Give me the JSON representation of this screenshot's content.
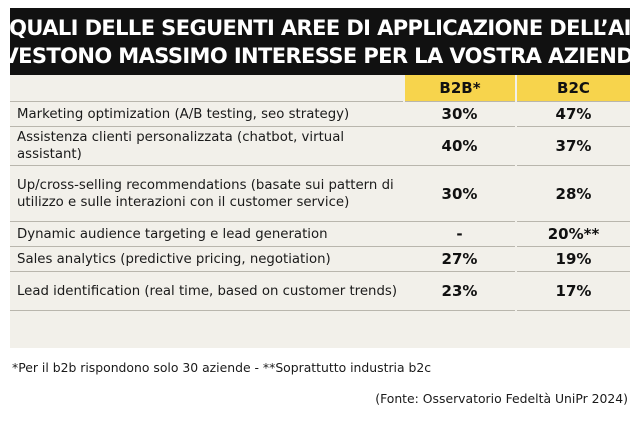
{
  "header": {
    "title_line1": "QUALI DELLE SEGUENTI AREE DI APPLICAZIONE DELL’AI",
    "title_line2": "RIVESTONO MASSIMO INTERESSE PER LA VOSTRA AZIENDA?"
  },
  "colors": {
    "title_background": "#111111",
    "title_text": "#ffffff",
    "table_background": "#f2f0ea",
    "header_accent": "#f7d44c",
    "divider": "#b9b6ad"
  },
  "chart_data": {
    "type": "table",
    "title": "QUALI DELLE SEGUENTI AREE DI APPLICAZIONE DELL’AI RIVESTONO MASSIMO INTERESSE PER LA VOSTRA AZIENDA?",
    "columns": [
      "B2B*",
      "B2C"
    ],
    "rows": [
      {
        "label": "Marketing optimization (A/B testing, seo strategy)",
        "values": [
          "30%",
          "47%"
        ]
      },
      {
        "label": "Assistenza clienti personalizzata (chatbot, virtual assistant)",
        "values": [
          "40%",
          "37%"
        ]
      },
      {
        "label": "Up/cross-selling recommendations (basate sui pattern di utilizzo e sulle interazioni con il customer service)",
        "values": [
          "30%",
          "28%"
        ]
      },
      {
        "label": "Dynamic audience targeting e lead generation",
        "values": [
          "-",
          "20%**"
        ]
      },
      {
        "label": "Sales analytics (predictive pricing, negotiation)",
        "values": [
          "27%",
          "19%"
        ]
      },
      {
        "label": "Lead identification (real time, based on customer trends)",
        "values": [
          "23%",
          "17%"
        ]
      }
    ],
    "footnote": "*Per il b2b rispondono solo 30 aziende - **Soprattutto industria b2c",
    "source": "(Fonte: Osservatorio Fedeltà UniPr 2024)"
  }
}
